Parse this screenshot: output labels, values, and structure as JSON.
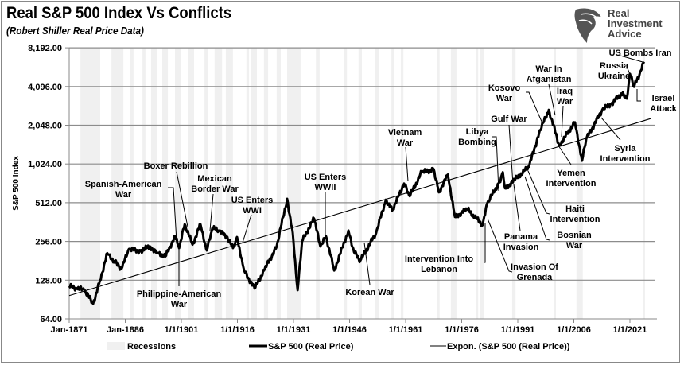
{
  "header": {
    "title": "Real S&P 500 Index Vs Conflicts",
    "subtitle": "(Robert Shiller Real Price Data)",
    "logo_lines": [
      "Real",
      "Investment",
      "Advice"
    ]
  },
  "chart_data": {
    "type": "line",
    "title": "Real S&P 500 Index Vs Conflicts",
    "subtitle": "(Robert Shiller Real Price Data)",
    "ylabel": "S&P 500 Index",
    "xlabel": "",
    "y_scale": "log2",
    "ylim": [
      64,
      8192
    ],
    "xlim": [
      1871,
      2026
    ],
    "grid": "horizontal",
    "y_ticks": [
      "8,192.00",
      "4,096.00",
      "2,048.00",
      "1,024.00",
      "512.00",
      "256.00",
      "128.00",
      "64.00"
    ],
    "y_tick_values": [
      8192,
      4096,
      2048,
      1024,
      512,
      256,
      128,
      64
    ],
    "x_ticks": [
      "Jan-1871",
      "Jan-1886",
      "1/1/1901",
      "1/1/1916",
      "1/1/1931",
      "1/1/1946",
      "1/1/1961",
      "1/1/1976",
      "1/1/1991",
      "1/1/2006",
      "1/1/2021"
    ],
    "x_tick_values": [
      1871,
      1886,
      1901,
      1916,
      1931,
      1946,
      1961,
      1976,
      1991,
      2006,
      2021
    ],
    "legend_position": "bottom",
    "legend": [
      "Recessions",
      "S&P 500 (Real Price)",
      "Expon. (S&P 500 (Real Price))"
    ],
    "colors": {
      "price": "#000000",
      "trend": "#000000",
      "recession": "#f0f0f0",
      "grid": "#8c8c8c"
    },
    "series": [
      {
        "name": "S&P 500 (Real Price)",
        "x": [
          1871,
          1873,
          1875,
          1877.4,
          1879,
          1881.2,
          1883,
          1885,
          1887,
          1890,
          1892.5,
          1894.5,
          1896.7,
          1899.3,
          1900.4,
          1901.9,
          1904,
          1906.1,
          1907.8,
          1909.3,
          1911,
          1913.1,
          1914.8,
          1915.9,
          1917.8,
          1920.6,
          1923.1,
          1926.5,
          1929.3,
          1930.8,
          1932.1,
          1933.3,
          1936.5,
          1938.2,
          1939.7,
          1941.9,
          1945.7,
          1947.2,
          1948.9,
          1953.1,
          1955.7,
          1957.4,
          1958.9,
          1960.6,
          1962.1,
          1965.3,
          1968.5,
          1969.9,
          1972.3,
          1974.2,
          1977.4,
          1981.6,
          1982.9,
          1985.9,
          1987,
          1987.6,
          1990.1,
          1994,
          1996.7,
          1999.3,
          2002.1,
          2006.3,
          2008.2,
          2009.3,
          2013.6,
          2016,
          2019.1,
          2020.2,
          2021,
          2022.1,
          2023.5,
          2024.8
        ],
        "y": [
          115,
          110,
          108,
          84,
          120,
          207,
          180,
          157,
          224,
          215,
          234,
          210,
          195,
          281,
          227,
          348,
          242,
          348,
          218,
          324,
          311,
          281,
          227,
          277,
          152,
          110,
          152,
          234,
          549,
          298,
          107,
          258,
          385,
          234,
          281,
          152,
          311,
          212,
          182,
          298,
          540,
          445,
          566,
          721,
          575,
          883,
          932,
          616,
          848,
          397,
          457,
          343,
          512,
          721,
          883,
          662,
          766,
          975,
          1783,
          2695,
          1423,
          2157,
          1085,
          1599,
          2695,
          3000,
          3686,
          3300,
          5140,
          4070,
          5000,
          6370
        ]
      },
      {
        "name": "Expon. (S&P 500 (Real Price))",
        "type": "trendline",
        "x": [
          1871,
          2026
        ],
        "y": [
          97,
          2280
        ]
      },
      {
        "name": "Recessions",
        "type": "bands",
        "ranges": [
          [
            1874.0,
            1879.3
          ],
          [
            1882.3,
            1885.5
          ],
          [
            1887.2,
            1888.2
          ],
          [
            1890.6,
            1891.4
          ],
          [
            1892.9,
            1894.4
          ],
          [
            1895.9,
            1897.4
          ],
          [
            1899.3,
            1900.8
          ],
          [
            1902.7,
            1904.4
          ],
          [
            1907.2,
            1908.2
          ],
          [
            1909.9,
            1911.9
          ],
          [
            1912.9,
            1914.8
          ],
          [
            1918.4,
            1919.1
          ],
          [
            1919.7,
            1921.2
          ],
          [
            1923.1,
            1924.2
          ],
          [
            1926.5,
            1927.6
          ],
          [
            1929.3,
            1932.9
          ],
          [
            1937.0,
            1938.0
          ],
          [
            1944.6,
            1945.3
          ],
          [
            1948.4,
            1949.3
          ],
          [
            1952.9,
            1953.8
          ],
          [
            1957.2,
            1957.8
          ],
          [
            1959.7,
            1960.4
          ],
          [
            1969.3,
            1970.1
          ],
          [
            1973.1,
            1974.6
          ],
          [
            1979.9,
            1980.4
          ],
          [
            1981.0,
            1981.9
          ],
          [
            1989.5,
            1990.4
          ],
          [
            2000.6,
            2001.2
          ],
          [
            2006.7,
            2008.4
          ],
          [
            2024.6,
            2025.0
          ]
        ]
      }
    ],
    "annotations": [
      {
        "text": [
          "Spanish-American",
          "War"
        ]
      },
      {
        "text": [
          "Boxer Rebillion"
        ]
      },
      {
        "text": [
          "Mexican",
          "Border War"
        ]
      },
      {
        "text": [
          "US Enters",
          "WWI"
        ]
      },
      {
        "text": [
          "US Enters",
          "WWII"
        ]
      },
      {
        "text": [
          "Philippine-American",
          "War"
        ]
      },
      {
        "text": [
          "Korean War"
        ]
      },
      {
        "text": [
          "Vietnam",
          "War"
        ]
      },
      {
        "text": [
          "Libya",
          "Bombing"
        ]
      },
      {
        "text": [
          "Gulf War"
        ]
      },
      {
        "text": [
          "Kosovo",
          "War"
        ]
      },
      {
        "text": [
          "War In",
          "Afganistan"
        ]
      },
      {
        "text": [
          "Iraq",
          "War"
        ]
      },
      {
        "text": [
          "Yemen",
          "Intervention"
        ]
      },
      {
        "text": [
          "Syria",
          "Intervention"
        ]
      },
      {
        "text": [
          "Israel",
          "Attack"
        ]
      },
      {
        "text": [
          "Russia",
          "Ukraine"
        ]
      },
      {
        "text": [
          "US Bombs Iran"
        ]
      },
      {
        "text": [
          "Haiti",
          "Intervention"
        ]
      },
      {
        "text": [
          "Bosnian",
          "War"
        ]
      },
      {
        "text": [
          "Panama",
          "Invasion"
        ]
      },
      {
        "text": [
          "Intervention Into",
          "Lebanon"
        ]
      },
      {
        "text": [
          "Invasion Of",
          "Grenada"
        ]
      }
    ]
  }
}
